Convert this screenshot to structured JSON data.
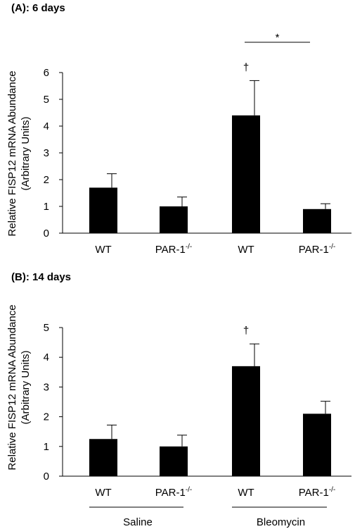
{
  "chart_data": [
    {
      "type": "bar",
      "panel_label": "(A): 6 days",
      "ylabel_line1": "Relative FISP12 mRNA Abundance",
      "ylabel_line2": "(Arbitrary Units)",
      "ylim": [
        0,
        6
      ],
      "yticks": [
        0,
        1,
        2,
        3,
        4,
        5,
        6
      ],
      "categories": [
        {
          "base": "WT",
          "sup": ""
        },
        {
          "base": "PAR-1",
          "sup": "-/-"
        },
        {
          "base": "WT",
          "sup": ""
        },
        {
          "base": "PAR-1",
          "sup": "-/-"
        }
      ],
      "values": [
        1.7,
        1.0,
        4.4,
        0.9
      ],
      "errors": [
        0.52,
        0.35,
        1.3,
        0.2
      ],
      "bar_color": "#000000",
      "dagger": {
        "label": "†",
        "category_index": 2
      },
      "significance": {
        "label": "*",
        "between": [
          2,
          3
        ]
      }
    },
    {
      "type": "bar",
      "panel_label": "(B): 14 days",
      "ylabel_line1": "Relative FISP12 mRNA Abundance",
      "ylabel_line2": "(Arbitrary Units)",
      "ylim": [
        0,
        5
      ],
      "yticks": [
        0,
        1,
        2,
        3,
        4,
        5
      ],
      "categories": [
        {
          "base": "WT",
          "sup": ""
        },
        {
          "base": "PAR-1",
          "sup": "-/-"
        },
        {
          "base": "WT",
          "sup": ""
        },
        {
          "base": "PAR-1",
          "sup": "-/-"
        }
      ],
      "values": [
        1.25,
        1.0,
        3.7,
        2.1
      ],
      "errors": [
        0.47,
        0.38,
        0.75,
        0.42
      ],
      "bar_color": "#000000",
      "dagger": {
        "label": "†",
        "category_index": 2
      },
      "groups": [
        {
          "label": "Saline",
          "categories": [
            0,
            1
          ]
        },
        {
          "label": "Bleomycin",
          "categories": [
            2,
            3
          ]
        }
      ]
    }
  ]
}
